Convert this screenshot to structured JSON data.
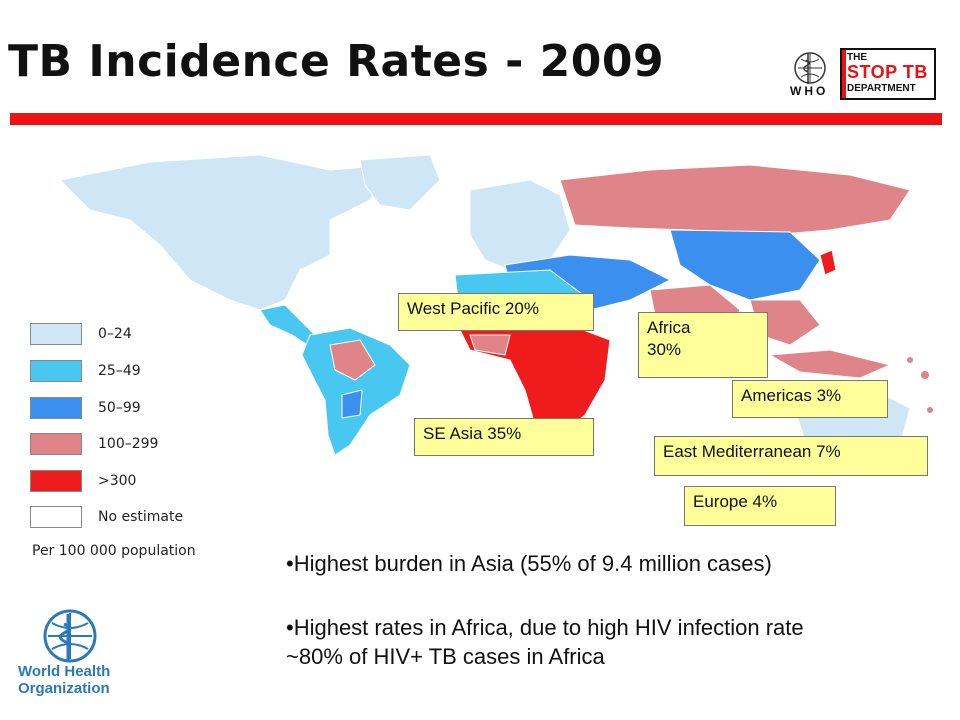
{
  "title": "TB Incidence Rates - 2009",
  "logos": {
    "who_abbr": "WHO",
    "stop_tb_the": "THE",
    "stop_tb_main": "STOP TB",
    "stop_tb_dept": "DEPARTMENT",
    "who_name_line1": "World Health",
    "who_name_line2": "Organization"
  },
  "legend": {
    "items": [
      {
        "label": "0–24",
        "color": "#cfe6f7"
      },
      {
        "label": "25–49",
        "color": "#48c8f0"
      },
      {
        "label": "50–99",
        "color": "#3a8fef"
      },
      {
        "label": "100–299",
        "color": "#df8488"
      },
      {
        "label": ">300",
        "color": "#ee1c1c"
      },
      {
        "label": "No estimate",
        "color": "#ffffff"
      }
    ],
    "unit": "Per 100 000 population"
  },
  "regions": {
    "west_pacific": "West Pacific 20%",
    "africa_line1": "Africa",
    "africa_line2": "30%",
    "americas": "Americas 3%",
    "se_asia": "SE Asia 35%",
    "east_med": "East Mediterranean 7%",
    "europe": "Europe 4%"
  },
  "bullets": {
    "b1": "•Highest burden in Asia (55% of 9.4 million cases)",
    "b2_line1": "•Highest rates in Africa, due to high HIV infection rate",
    "b2_line2": "~80% of HIV+ TB cases in Africa"
  },
  "colors": {
    "accent_red": "#ee1111",
    "label_box": "#ffff99",
    "who_blue": "#2a7ab8"
  }
}
